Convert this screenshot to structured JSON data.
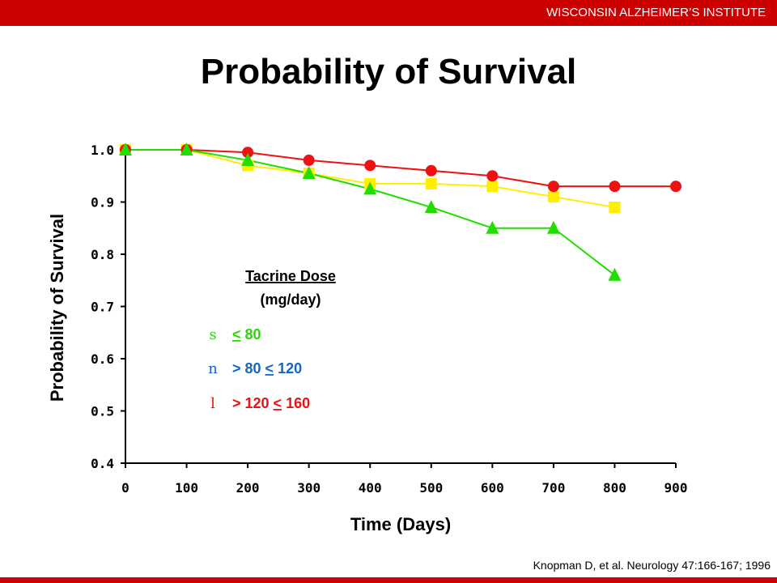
{
  "header": {
    "institute": "WISCONSIN ALZHEIMER’S INSTITUTE"
  },
  "title": "Probability of Survival",
  "citation": "Knopman D, et al. Neurology 47:166-167; 1996",
  "colors": {
    "brand_red": "#cc0000",
    "series_low": "#22dd00",
    "series_mid": "#ffee00",
    "series_high": "#ee1111",
    "legend_mid_text": "#1166cc"
  },
  "legend": {
    "title": "Tacrine Dose",
    "subtitle": "(mg/day)",
    "items": [
      {
        "glyph": "s",
        "prefix": "",
        "underlined": "<",
        "suffix": " 80",
        "text_color": "#22dd00",
        "glyph_color": "#22dd00"
      },
      {
        "glyph": "n",
        "prefix": "> 80 ",
        "underlined": "<",
        "suffix": " 120",
        "text_color": "#1166cc",
        "glyph_color": "#1166cc"
      },
      {
        "glyph": "l",
        "prefix": "> 120 ",
        "underlined": "<",
        "suffix": " 160",
        "text_color": "#ee1111",
        "glyph_color": "#ee1111"
      }
    ]
  },
  "chart_data": {
    "type": "line",
    "xlabel": "Time (Days)",
    "ylabel": "Probability of Survival",
    "xlim": [
      0,
      900
    ],
    "ylim": [
      0.4,
      1.0
    ],
    "xticks": [
      "0",
      "100",
      "200",
      "300",
      "400",
      "500",
      "600",
      "700",
      "800",
      "900"
    ],
    "yticks": [
      "0.4",
      "0.5",
      "0.6",
      "0.7",
      "0.8",
      "0.9",
      "1.0"
    ],
    "series": [
      {
        "marker": "square",
        "color": "#ffee00",
        "x": [
          0,
          100,
          200,
          300,
          400,
          500,
          600,
          700,
          800
        ],
        "y": [
          1.0,
          1.0,
          0.97,
          0.955,
          0.935,
          0.935,
          0.93,
          0.91,
          0.89
        ]
      },
      {
        "marker": "circle",
        "color": "#ee1111",
        "x": [
          0,
          100,
          200,
          300,
          400,
          500,
          600,
          700,
          800,
          900
        ],
        "y": [
          1.0,
          1.0,
          0.995,
          0.98,
          0.97,
          0.96,
          0.95,
          0.93,
          0.93,
          0.93
        ]
      },
      {
        "marker": "triangle",
        "color": "#22dd00",
        "x": [
          0,
          100,
          200,
          300,
          400,
          500,
          600,
          700,
          800
        ],
        "y": [
          1.0,
          1.0,
          0.98,
          0.955,
          0.925,
          0.89,
          0.85,
          0.85,
          0.76
        ]
      }
    ]
  }
}
